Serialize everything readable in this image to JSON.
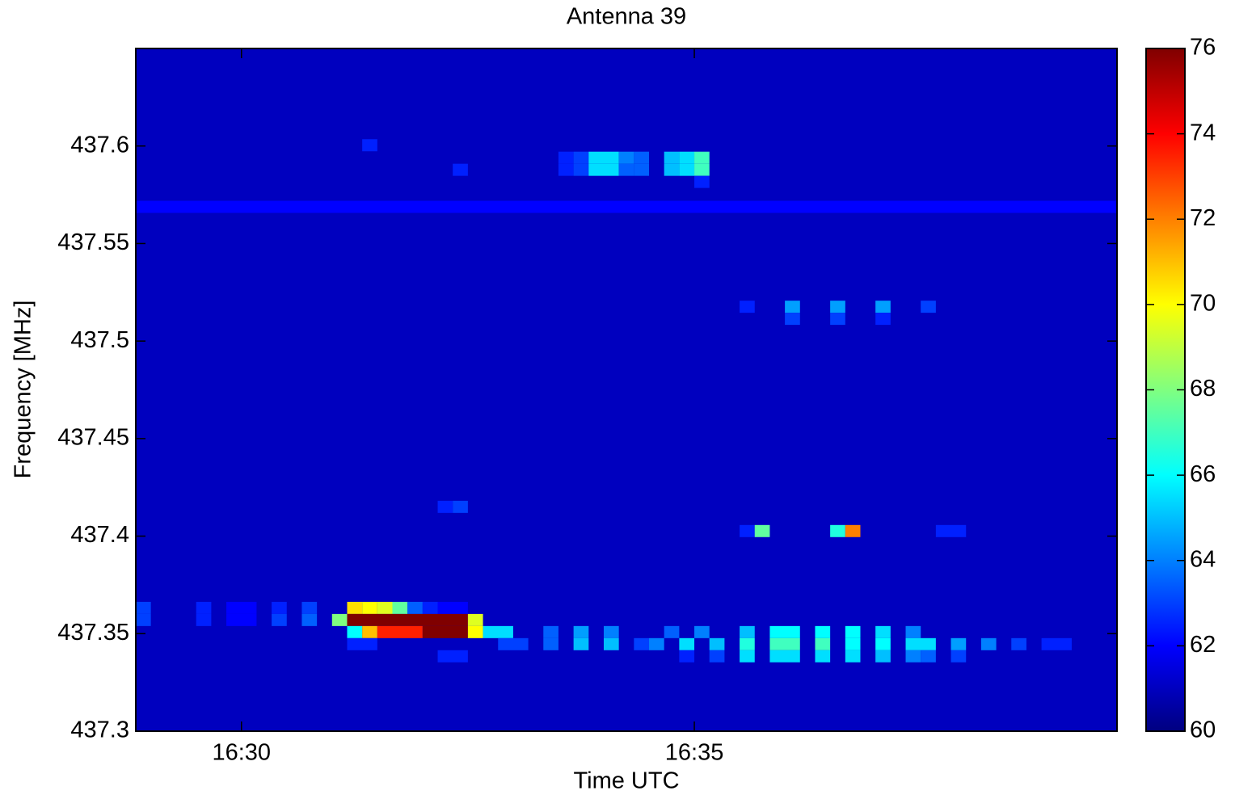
{
  "chart_data": {
    "type": "heatmap",
    "title": "Antenna 39",
    "x_label": "Time UTC",
    "y_label": "Frequency [MHz]",
    "xlim": [
      "16:28:50",
      "16:39:40"
    ],
    "xticks": [
      "16:30",
      "16:35"
    ],
    "ylim": [
      437.3,
      437.65
    ],
    "yticks": [
      437.3,
      437.35,
      437.4,
      437.45,
      437.5,
      437.55,
      437.6
    ],
    "colormap": "jet",
    "clim": [
      60,
      76
    ],
    "cticks": [
      60,
      62,
      64,
      66,
      68,
      70,
      72,
      74,
      76
    ],
    "dt": 10,
    "df": 0.0062,
    "fill_value": 61,
    "cells": [
      {
        "t": "16:28:50",
        "t_end": "16:39:40",
        "f": 437.5688,
        "value": 62
      },
      {
        "t": "16:28:50",
        "f": 437.3632,
        "value": 63
      },
      {
        "t": "16:29:30",
        "f": 437.3632,
        "value": 62.5
      },
      {
        "t": "16:29:50",
        "t_end": "16:30:10",
        "f": 437.3632,
        "value": 62
      },
      {
        "t": "16:30:20",
        "f": 437.3632,
        "value": 62.5
      },
      {
        "t": "16:30:40",
        "f": 437.3632,
        "value": 63
      },
      {
        "t": "16:31:10",
        "f": 437.3632,
        "value": 70.5
      },
      {
        "t": "16:31:20",
        "f": 437.3632,
        "value": 70
      },
      {
        "t": "16:31:30",
        "f": 437.3632,
        "value": 69.5
      },
      {
        "t": "16:31:40",
        "f": 437.3632,
        "value": 67.5
      },
      {
        "t": "16:31:50",
        "f": 437.3632,
        "value": 63.5
      },
      {
        "t": "16:32:00",
        "f": 437.3632,
        "value": 62.5
      },
      {
        "t": "16:32:10",
        "t_end": "16:32:30",
        "f": 437.3632,
        "value": 62
      },
      {
        "t": "16:28:50",
        "f": 437.357,
        "value": 63
      },
      {
        "t": "16:29:30",
        "f": 437.357,
        "value": 62.5
      },
      {
        "t": "16:29:50",
        "t_end": "16:30:10",
        "f": 437.357,
        "value": 62
      },
      {
        "t": "16:30:20",
        "f": 437.357,
        "value": 63
      },
      {
        "t": "16:30:40",
        "f": 437.357,
        "value": 63.5
      },
      {
        "t": "16:31:00",
        "f": 437.357,
        "value": 68
      },
      {
        "t": "16:31:10",
        "t_end": "16:32:30",
        "f": 437.357,
        "value": 76
      },
      {
        "t": "16:32:30",
        "f": 437.357,
        "value": 69.5
      },
      {
        "t": "16:31:10",
        "f": 437.3508,
        "value": 66
      },
      {
        "t": "16:31:20",
        "f": 437.3508,
        "value": 71
      },
      {
        "t": "16:31:30",
        "t_end": "16:32:00",
        "f": 437.3508,
        "value": 73.5
      },
      {
        "t": "16:32:00",
        "t_end": "16:32:30",
        "f": 437.3508,
        "value": 76
      },
      {
        "t": "16:32:30",
        "f": 437.3508,
        "value": 70
      },
      {
        "t": "16:32:40",
        "t_end": "16:33:00",
        "f": 437.3508,
        "value": 65.5
      },
      {
        "t": "16:33:20",
        "f": 437.3508,
        "value": 63.5
      },
      {
        "t": "16:33:40",
        "f": 437.3508,
        "value": 64.5
      },
      {
        "t": "16:34:00",
        "f": 437.3508,
        "value": 64
      },
      {
        "t": "16:34:40",
        "f": 437.3508,
        "value": 63.5
      },
      {
        "t": "16:35:00",
        "f": 437.3508,
        "value": 64
      },
      {
        "t": "16:35:30",
        "f": 437.3508,
        "value": 65
      },
      {
        "t": "16:35:50",
        "t_end": "16:36:10",
        "f": 437.3508,
        "value": 66
      },
      {
        "t": "16:36:20",
        "f": 437.3508,
        "value": 66
      },
      {
        "t": "16:36:40",
        "f": 437.3508,
        "value": 66
      },
      {
        "t": "16:37:00",
        "f": 437.3508,
        "value": 65.5
      },
      {
        "t": "16:37:20",
        "f": 437.3508,
        "value": 64
      },
      {
        "t": "16:31:10",
        "t_end": "16:31:30",
        "f": 437.3446,
        "value": 62.5
      },
      {
        "t": "16:32:50",
        "t_end": "16:33:10",
        "f": 437.3446,
        "value": 63
      },
      {
        "t": "16:33:20",
        "f": 437.3446,
        "value": 63.5
      },
      {
        "t": "16:33:40",
        "f": 437.3446,
        "value": 65
      },
      {
        "t": "16:34:00",
        "f": 437.3446,
        "value": 65
      },
      {
        "t": "16:34:20",
        "f": 437.3446,
        "value": 63
      },
      {
        "t": "16:34:30",
        "f": 437.3446,
        "value": 64
      },
      {
        "t": "16:34:50",
        "f": 437.3446,
        "value": 65.5
      },
      {
        "t": "16:35:10",
        "f": 437.3446,
        "value": 65
      },
      {
        "t": "16:35:30",
        "f": 437.3446,
        "value": 66.5
      },
      {
        "t": "16:35:50",
        "t_end": "16:36:10",
        "f": 437.3446,
        "value": 67
      },
      {
        "t": "16:36:20",
        "f": 437.3446,
        "value": 67
      },
      {
        "t": "16:36:40",
        "f": 437.3446,
        "value": 66
      },
      {
        "t": "16:37:00",
        "f": 437.3446,
        "value": 66
      },
      {
        "t": "16:37:20",
        "t_end": "16:37:40",
        "f": 437.3446,
        "value": 65.5
      },
      {
        "t": "16:37:50",
        "f": 437.3446,
        "value": 64.5
      },
      {
        "t": "16:38:10",
        "f": 437.3446,
        "value": 64
      },
      {
        "t": "16:38:30",
        "f": 437.3446,
        "value": 63
      },
      {
        "t": "16:38:50",
        "t_end": "16:39:10",
        "f": 437.3446,
        "value": 62.5
      },
      {
        "t": "16:32:10",
        "t_end": "16:32:30",
        "f": 437.3384,
        "value": 62.5
      },
      {
        "t": "16:34:50",
        "f": 437.3384,
        "value": 62.5
      },
      {
        "t": "16:35:10",
        "f": 437.3384,
        "value": 63
      },
      {
        "t": "16:35:30",
        "f": 437.3384,
        "value": 65.5
      },
      {
        "t": "16:35:50",
        "t_end": "16:36:10",
        "f": 437.3384,
        "value": 65.5
      },
      {
        "t": "16:36:20",
        "f": 437.3384,
        "value": 65.5
      },
      {
        "t": "16:36:40",
        "f": 437.3384,
        "value": 65.5
      },
      {
        "t": "16:37:00",
        "f": 437.3384,
        "value": 65
      },
      {
        "t": "16:37:20",
        "f": 437.3384,
        "value": 64
      },
      {
        "t": "16:37:30",
        "f": 437.3384,
        "value": 63.5
      },
      {
        "t": "16:37:50",
        "f": 437.3384,
        "value": 63
      },
      {
        "t": "16:35:30",
        "f": 437.4026,
        "value": 62.5
      },
      {
        "t": "16:35:40",
        "f": 437.4026,
        "value": 67.5
      },
      {
        "t": "16:36:30",
        "f": 437.4026,
        "value": 66.5
      },
      {
        "t": "16:36:40",
        "f": 437.4026,
        "value": 72
      },
      {
        "t": "16:37:40",
        "t_end": "16:38:00",
        "f": 437.4026,
        "value": 62.5
      },
      {
        "t": "16:32:10",
        "f": 437.415,
        "value": 62.5
      },
      {
        "t": "16:32:20",
        "f": 437.415,
        "value": 63
      },
      {
        "t": "16:35:30",
        "f": 437.5176,
        "value": 62.5
      },
      {
        "t": "16:36:00",
        "f": 437.5176,
        "value": 64.5
      },
      {
        "t": "16:36:30",
        "f": 437.5176,
        "value": 64.5
      },
      {
        "t": "16:37:00",
        "f": 437.5176,
        "value": 64.5
      },
      {
        "t": "16:37:30",
        "f": 437.5176,
        "value": 63
      },
      {
        "t": "16:36:00",
        "f": 437.5114,
        "value": 63
      },
      {
        "t": "16:36:30",
        "f": 437.5114,
        "value": 63
      },
      {
        "t": "16:37:00",
        "f": 437.5114,
        "value": 62.5
      },
      {
        "t": "16:31:20",
        "f": 437.6004,
        "value": 62.5
      },
      {
        "t": "16:33:30",
        "f": 437.594,
        "value": 62.5
      },
      {
        "t": "16:33:40",
        "f": 437.594,
        "value": 63
      },
      {
        "t": "16:33:50",
        "t_end": "16:34:10",
        "f": 437.594,
        "value": 65.5
      },
      {
        "t": "16:34:10",
        "f": 437.594,
        "value": 64
      },
      {
        "t": "16:34:20",
        "f": 437.594,
        "value": 63.5
      },
      {
        "t": "16:34:40",
        "f": 437.594,
        "value": 65
      },
      {
        "t": "16:34:50",
        "f": 437.594,
        "value": 65.5
      },
      {
        "t": "16:35:00",
        "f": 437.594,
        "value": 67
      },
      {
        "t": "16:32:20",
        "f": 437.5878,
        "value": 62.5
      },
      {
        "t": "16:33:30",
        "f": 437.5878,
        "value": 62.5
      },
      {
        "t": "16:33:40",
        "f": 437.5878,
        "value": 63
      },
      {
        "t": "16:33:50",
        "t_end": "16:34:10",
        "f": 437.5878,
        "value": 65.5
      },
      {
        "t": "16:34:10",
        "f": 437.5878,
        "value": 63.5
      },
      {
        "t": "16:34:20",
        "f": 437.5878,
        "value": 63.5
      },
      {
        "t": "16:34:40",
        "f": 437.5878,
        "value": 65
      },
      {
        "t": "16:34:50",
        "f": 437.5878,
        "value": 65.5
      },
      {
        "t": "16:35:00",
        "f": 437.5878,
        "value": 67
      },
      {
        "t": "16:35:00",
        "f": 437.5816,
        "value": 62.5
      }
    ]
  }
}
